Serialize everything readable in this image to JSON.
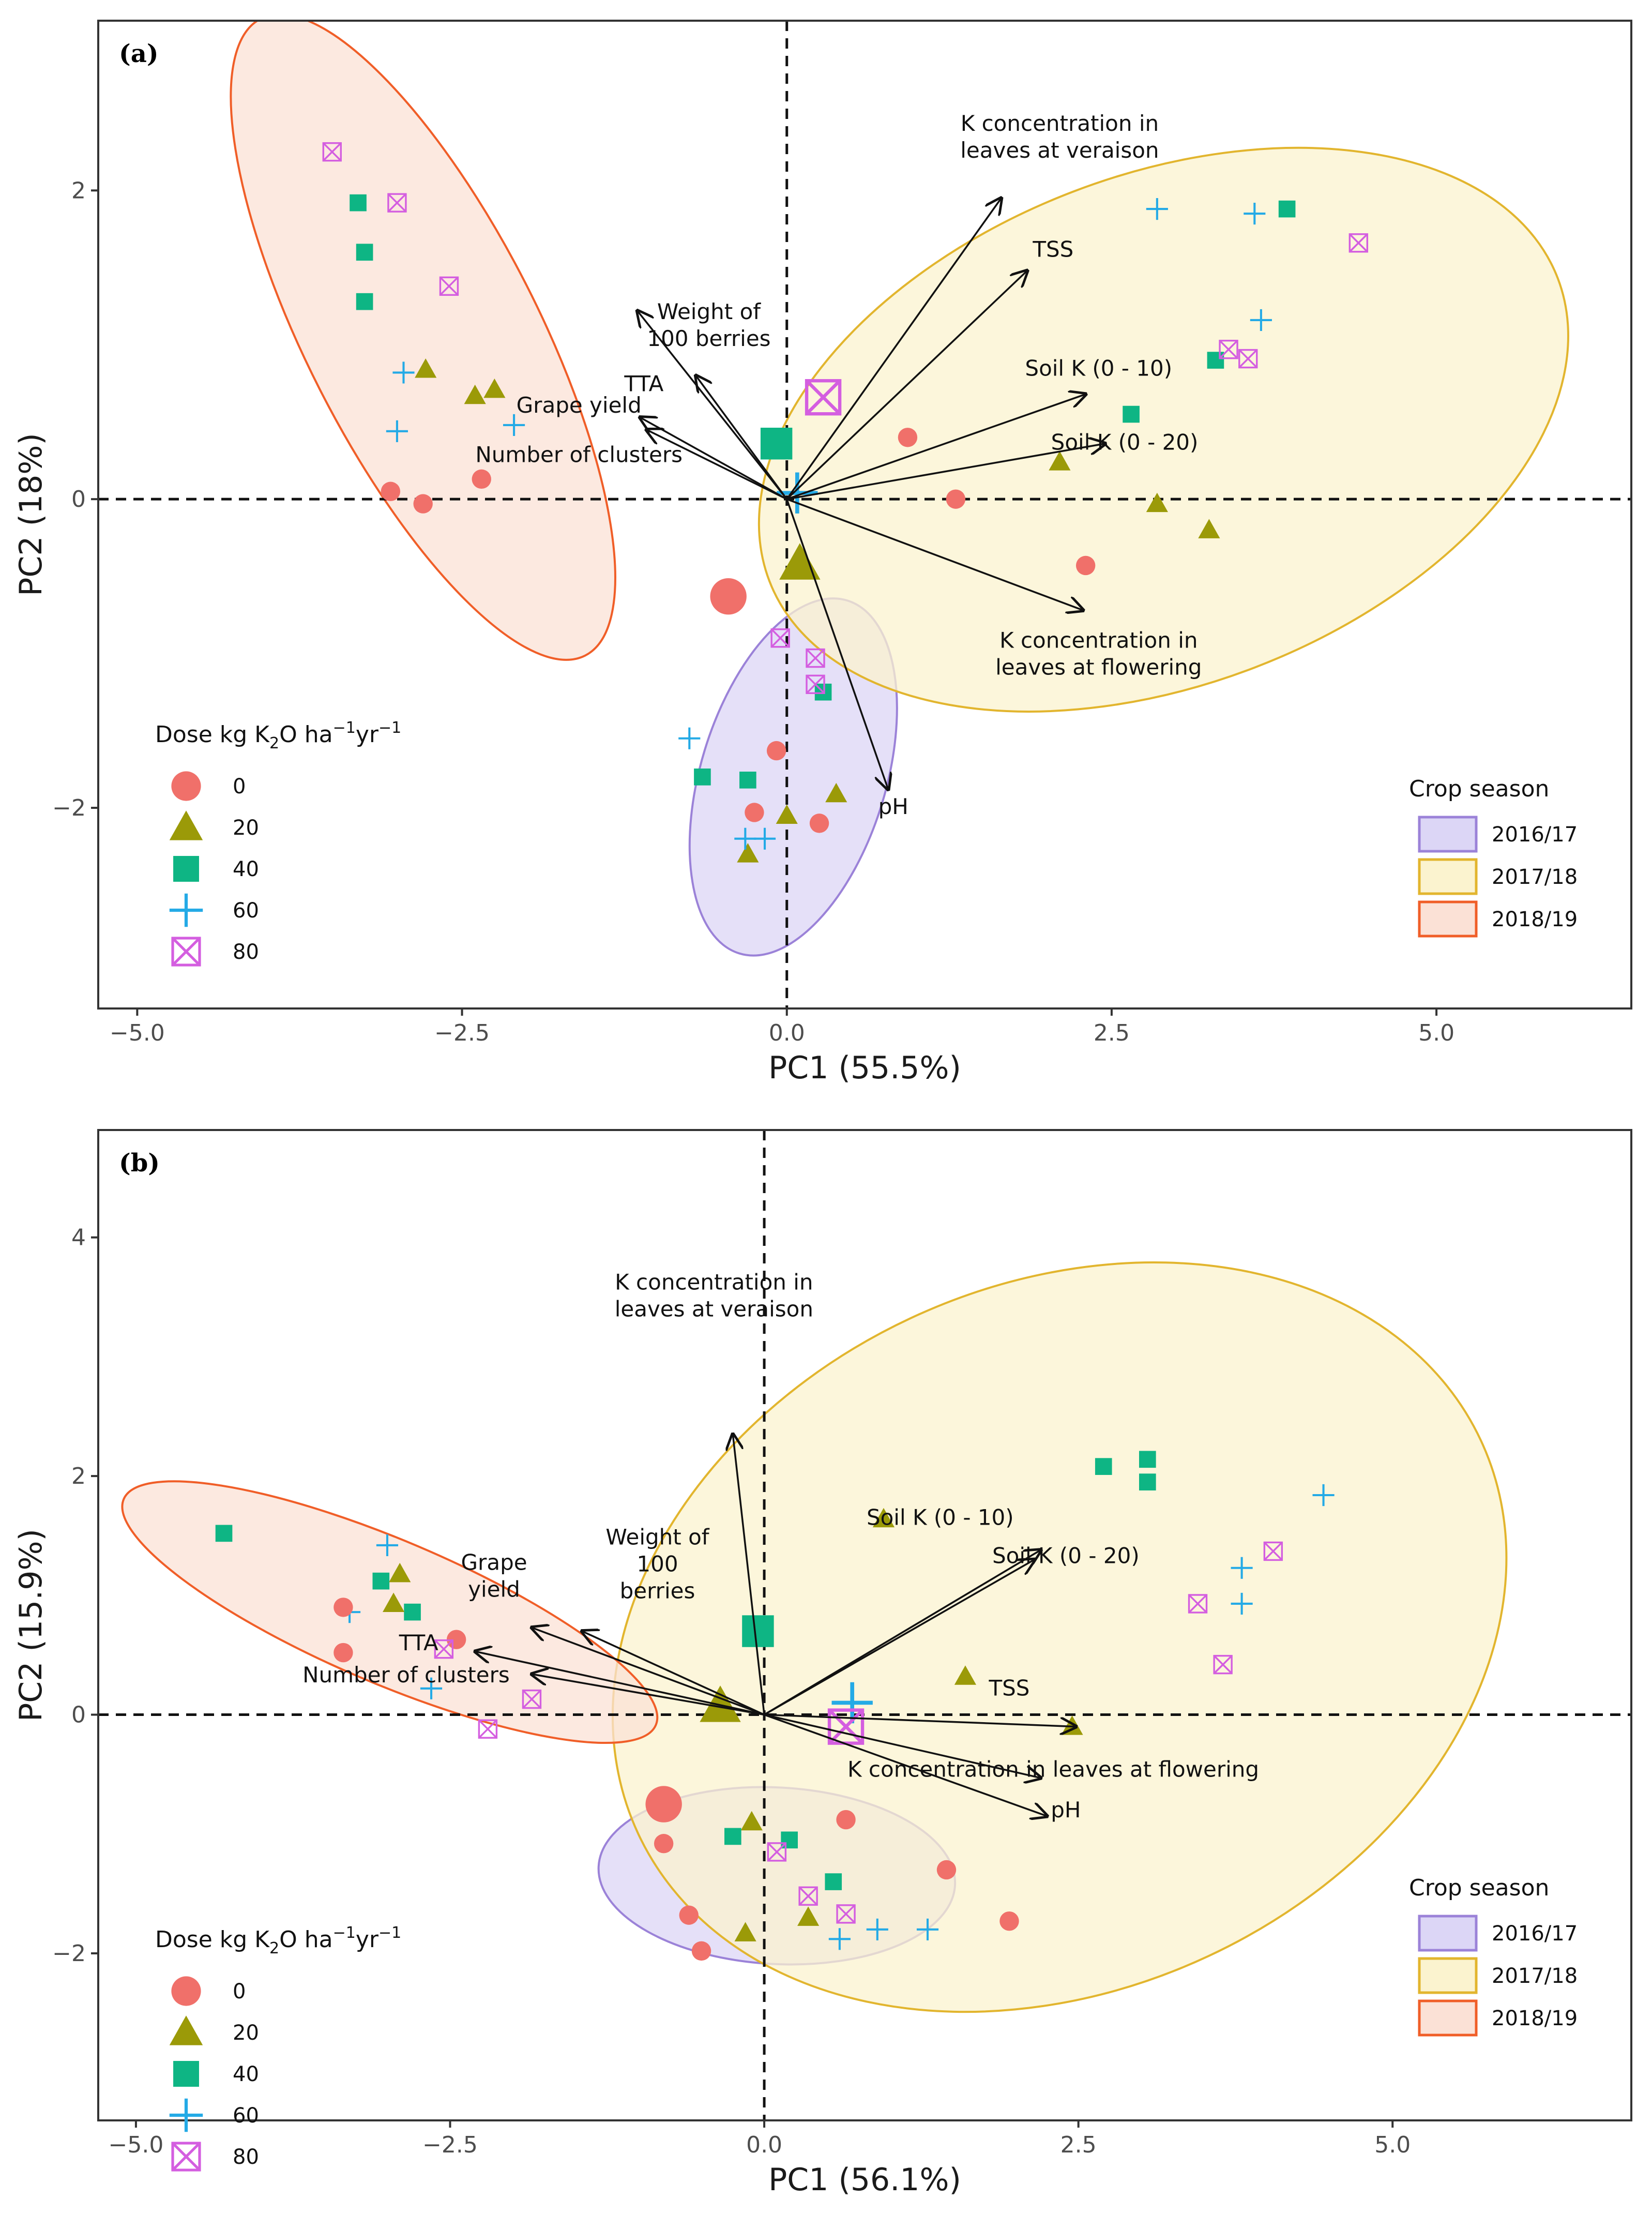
{
  "figure": {
    "colors": {
      "dose_0": "#f0706a",
      "dose_20": "#9b9a08",
      "dose_40": "#0eb584",
      "dose_60": "#24aae6",
      "dose_80": "#d45ee0",
      "season_2016_17_fill": "#dcd6f6",
      "season_2016_17_border": "#9b82d8",
      "season_2017_18_fill": "#fbf3cf",
      "season_2017_18_border": "#e2b52e",
      "season_2018_19_fill": "#fbe1d6",
      "season_2018_19_border": "#f05e28"
    }
  },
  "chart_data": [
    {
      "type": "scatter",
      "panel_label": "(a)",
      "xlabel": "PC1 (55.5%)",
      "ylabel": "PC2 (18%)",
      "xlim": [
        -5.3,
        6.5
      ],
      "ylim": [
        -3.3,
        3.1
      ],
      "xticks": [
        -5.0,
        -2.5,
        0.0,
        2.5,
        5.0
      ],
      "xtick_labels": [
        "−5.0",
        "−2.5",
        "0.0",
        "2.5",
        "5.0"
      ],
      "yticks": [
        -2,
        0,
        2
      ],
      "ytick_labels": [
        "−2",
        "0",
        "2"
      ],
      "dose_legend": {
        "title_prefix": "Dose kg K",
        "title_subscript": "2",
        "title_suffix": "O ha",
        "title_sup1": "−1",
        "title_mid": "yr",
        "title_sup2": "−1",
        "labels": [
          "0",
          "20",
          "40",
          "60",
          "80"
        ]
      },
      "season_legend": {
        "title": "Crop season",
        "labels": [
          "2016/17",
          "2017/18",
          "2018/19"
        ]
      },
      "ellipses": [
        {
          "season": "2016/17",
          "cx": 0.05,
          "cy": -1.8,
          "rx": 1.42,
          "ry": 0.6,
          "angle": 73
        },
        {
          "season": "2017/18",
          "cx": 2.9,
          "cy": 0.45,
          "rx": 3.25,
          "ry": 1.65,
          "angle": 21
        },
        {
          "season": "2018/19",
          "cx": -2.8,
          "cy": 1.05,
          "rx": 2.75,
          "ry": 0.75,
          "angle": -63
        }
      ],
      "loadings": [
        {
          "label": "K concentration in\nleaves at veraison",
          "x": 1.65,
          "y": 1.95,
          "lx": 2.1,
          "ly": 2.3
        },
        {
          "label": "TSS",
          "x": 1.85,
          "y": 1.48,
          "lx": 2.05,
          "ly": 1.57
        },
        {
          "label": "Soil K (0 - 10)",
          "x": 2.3,
          "y": 0.68,
          "lx": 2.4,
          "ly": 0.8
        },
        {
          "label": "Soil K (0 - 20)",
          "x": 2.45,
          "y": 0.36,
          "lx": 2.6,
          "ly": 0.32
        },
        {
          "label": "K concentration in\nleaves at flowering",
          "x": 2.28,
          "y": -0.72,
          "lx": 2.4,
          "ly": -1.05
        },
        {
          "label": "pH",
          "x": 0.78,
          "y": -1.88,
          "lx": 0.82,
          "ly": -2.04
        },
        {
          "label": "Weight of\n100 berries",
          "x": -0.7,
          "y": 0.8,
          "lx": -0.6,
          "ly": 1.08
        },
        {
          "label": "TTA",
          "x": -1.15,
          "y": 1.22,
          "lx": -1.1,
          "ly": 0.7
        },
        {
          "label": "Grape yield",
          "x": -1.13,
          "y": 0.53,
          "lx": -1.6,
          "ly": 0.56
        },
        {
          "label": "Number of clusters",
          "x": -1.08,
          "y": 0.45,
          "lx": -1.6,
          "ly": 0.24
        }
      ],
      "points": [
        {
          "x": -3.5,
          "y": 2.25,
          "dose": "80"
        },
        {
          "x": -3.0,
          "y": 1.92,
          "dose": "80"
        },
        {
          "x": -2.6,
          "y": 1.38,
          "dose": "80"
        },
        {
          "x": -3.3,
          "y": 1.92,
          "dose": "40"
        },
        {
          "x": -3.25,
          "y": 1.6,
          "dose": "40"
        },
        {
          "x": -3.25,
          "y": 1.28,
          "dose": "40"
        },
        {
          "x": -2.95,
          "y": 0.82,
          "dose": "60"
        },
        {
          "x": -3.0,
          "y": 0.44,
          "dose": "60"
        },
        {
          "x": -2.1,
          "y": 0.48,
          "dose": "60"
        },
        {
          "x": -2.78,
          "y": 0.84,
          "dose": "20"
        },
        {
          "x": -2.4,
          "y": 0.67,
          "dose": "20"
        },
        {
          "x": -2.25,
          "y": 0.71,
          "dose": "20"
        },
        {
          "x": -3.05,
          "y": 0.05,
          "dose": "0"
        },
        {
          "x": -2.8,
          "y": -0.03,
          "dose": "0"
        },
        {
          "x": -2.35,
          "y": 0.13,
          "dose": "0"
        },
        {
          "x": 0.93,
          "y": 0.4,
          "dose": "0"
        },
        {
          "x": 1.3,
          "y": 0.0,
          "dose": "0"
        },
        {
          "x": 2.3,
          "y": -0.43,
          "dose": "0"
        },
        {
          "x": 2.1,
          "y": 0.24,
          "dose": "20"
        },
        {
          "x": 2.85,
          "y": -0.03,
          "dose": "20"
        },
        {
          "x": 3.25,
          "y": -0.2,
          "dose": "20"
        },
        {
          "x": 2.65,
          "y": 0.55,
          "dose": "40"
        },
        {
          "x": 3.3,
          "y": 0.9,
          "dose": "40"
        },
        {
          "x": 3.85,
          "y": 1.88,
          "dose": "40"
        },
        {
          "x": 2.85,
          "y": 1.88,
          "dose": "60"
        },
        {
          "x": 3.6,
          "y": 1.85,
          "dose": "60"
        },
        {
          "x": 3.65,
          "y": 1.16,
          "dose": "60"
        },
        {
          "x": 3.4,
          "y": 0.97,
          "dose": "80"
        },
        {
          "x": 3.55,
          "y": 0.91,
          "dose": "80"
        },
        {
          "x": 4.4,
          "y": 1.66,
          "dose": "80"
        },
        {
          "x": -0.08,
          "y": -1.63,
          "dose": "0"
        },
        {
          "x": -0.25,
          "y": -2.03,
          "dose": "0"
        },
        {
          "x": 0.25,
          "y": -2.1,
          "dose": "0"
        },
        {
          "x": -0.3,
          "y": -2.3,
          "dose": "20"
        },
        {
          "x": 0.0,
          "y": -2.05,
          "dose": "20"
        },
        {
          "x": 0.38,
          "y": -1.91,
          "dose": "20"
        },
        {
          "x": -0.65,
          "y": -1.8,
          "dose": "40"
        },
        {
          "x": -0.3,
          "y": -1.82,
          "dose": "40"
        },
        {
          "x": 0.28,
          "y": -1.25,
          "dose": "40"
        },
        {
          "x": -0.75,
          "y": -1.55,
          "dose": "60"
        },
        {
          "x": -0.32,
          "y": -2.2,
          "dose": "60"
        },
        {
          "x": -0.17,
          "y": -2.2,
          "dose": "60"
        },
        {
          "x": -0.05,
          "y": -0.9,
          "dose": "80"
        },
        {
          "x": 0.22,
          "y": -1.03,
          "dose": "80"
        },
        {
          "x": 0.22,
          "y": -1.2,
          "dose": "80"
        }
      ],
      "centroids": [
        {
          "x": -0.45,
          "y": -0.63,
          "dose": "0"
        },
        {
          "x": 0.1,
          "y": -0.42,
          "dose": "20"
        },
        {
          "x": -0.08,
          "y": 0.36,
          "dose": "40"
        },
        {
          "x": 0.08,
          "y": 0.04,
          "dose": "60"
        },
        {
          "x": 0.28,
          "y": 0.66,
          "dose": "80"
        }
      ]
    },
    {
      "type": "scatter",
      "panel_label": "(b)",
      "xlabel": "PC1 (56.1%)",
      "ylabel": "PC2 (15.9%)",
      "xlim": [
        -5.3,
        6.9
      ],
      "ylim": [
        -3.4,
        4.9
      ],
      "xticks": [
        -5.0,
        -2.5,
        0.0,
        2.5,
        5.0
      ],
      "xtick_labels": [
        "−5.0",
        "−2.5",
        "0.0",
        "2.5",
        "5.0"
      ],
      "yticks": [
        -2,
        0,
        2,
        4
      ],
      "ytick_labels": [
        "−2",
        "0",
        "2",
        "4"
      ],
      "dose_legend": {
        "title_prefix": "Dose kg K",
        "title_subscript": "2",
        "title_suffix": "O ha",
        "title_sup1": "−1",
        "title_mid": "yr",
        "title_sup2": "−1",
        "labels": [
          "0",
          "20",
          "40",
          "60",
          "80"
        ]
      },
      "season_legend": {
        "title": "Crop season",
        "labels": [
          "2016/17",
          "2017/18",
          "2018/19"
        ]
      },
      "ellipses": [
        {
          "season": "2016/17",
          "cx": 0.1,
          "cy": -1.35,
          "rx": 1.42,
          "ry": 0.74,
          "angle": -3
        },
        {
          "season": "2017/18",
          "cx": 2.35,
          "cy": 0.65,
          "rx": 3.7,
          "ry": 2.95,
          "angle": 25
        },
        {
          "season": "2018/19",
          "cx": -2.98,
          "cy": 0.86,
          "rx": 2.3,
          "ry": 0.6,
          "angle": -23
        }
      ],
      "loadings": [
        {
          "label": "K concentration in\nleaves at veraison",
          "x": -0.25,
          "y": 2.35,
          "lx": -0.4,
          "ly": 3.45
        },
        {
          "label": "Soil K (0 - 10)",
          "x": 2.2,
          "y": 1.38,
          "lx": 1.4,
          "ly": 1.59
        },
        {
          "label": "Soil K (0 - 20)",
          "x": 2.15,
          "y": 1.3,
          "lx": 2.4,
          "ly": 1.27
        },
        {
          "label": "TSS",
          "x": 2.48,
          "y": -0.1,
          "lx": 1.95,
          "ly": 0.16
        },
        {
          "label": "K concentration in leaves at flowering",
          "x": 2.2,
          "y": -0.53,
          "lx": 2.3,
          "ly": -0.52
        },
        {
          "label": "pH",
          "x": 2.25,
          "y": -0.85,
          "lx": 2.4,
          "ly": -0.86
        },
        {
          "label": "Weight of\n100\nberries",
          "x": -1.45,
          "y": 0.7,
          "lx": -0.85,
          "ly": 1.2
        },
        {
          "label": "Grape\nyield",
          "x": -1.85,
          "y": 0.73,
          "lx": -2.15,
          "ly": 1.1
        },
        {
          "label": "TTA",
          "x": -2.3,
          "y": 0.53,
          "lx": -2.75,
          "ly": 0.54
        },
        {
          "label": "Number of clusters",
          "x": -1.85,
          "y": 0.34,
          "lx": -2.85,
          "ly": 0.27
        }
      ],
      "points": [
        {
          "x": -4.3,
          "y": 1.52,
          "dose": "40"
        },
        {
          "x": -3.05,
          "y": 1.12,
          "dose": "40"
        },
        {
          "x": -2.8,
          "y": 0.86,
          "dose": "40"
        },
        {
          "x": -3.0,
          "y": 1.42,
          "dose": "60"
        },
        {
          "x": -3.3,
          "y": 0.86,
          "dose": "60"
        },
        {
          "x": -2.65,
          "y": 0.22,
          "dose": "60"
        },
        {
          "x": -2.9,
          "y": 1.18,
          "dose": "20"
        },
        {
          "x": -2.95,
          "y": 0.93,
          "dose": "20"
        },
        {
          "x": -3.35,
          "y": 0.9,
          "dose": "0"
        },
        {
          "x": -3.35,
          "y": 0.52,
          "dose": "0"
        },
        {
          "x": -2.45,
          "y": 0.63,
          "dose": "0"
        },
        {
          "x": -2.55,
          "y": 0.55,
          "dose": "80"
        },
        {
          "x": -1.85,
          "y": 0.13,
          "dose": "80"
        },
        {
          "x": -2.2,
          "y": -0.12,
          "dose": "80"
        },
        {
          "x": 0.95,
          "y": 1.64,
          "dose": "20"
        },
        {
          "x": 1.6,
          "y": 0.32,
          "dose": "20"
        },
        {
          "x": 2.45,
          "y": -0.1,
          "dose": "20"
        },
        {
          "x": 2.7,
          "y": 2.08,
          "dose": "40"
        },
        {
          "x": 3.05,
          "y": 2.14,
          "dose": "40"
        },
        {
          "x": 3.05,
          "y": 1.95,
          "dose": "40"
        },
        {
          "x": 4.45,
          "y": 1.84,
          "dose": "60"
        },
        {
          "x": 3.8,
          "y": 1.23,
          "dose": "60"
        },
        {
          "x": 3.8,
          "y": 0.93,
          "dose": "60"
        },
        {
          "x": 4.05,
          "y": 1.37,
          "dose": "80"
        },
        {
          "x": 3.45,
          "y": 0.93,
          "dose": "80"
        },
        {
          "x": 3.65,
          "y": 0.42,
          "dose": "80"
        },
        {
          "x": -0.8,
          "y": -1.08,
          "dose": "0"
        },
        {
          "x": -0.6,
          "y": -1.68,
          "dose": "0"
        },
        {
          "x": -0.5,
          "y": -1.98,
          "dose": "0"
        },
        {
          "x": 0.65,
          "y": -0.88,
          "dose": "0"
        },
        {
          "x": 1.45,
          "y": -1.3,
          "dose": "0"
        },
        {
          "x": 1.95,
          "y": -1.73,
          "dose": "0"
        },
        {
          "x": -0.1,
          "y": -0.9,
          "dose": "20"
        },
        {
          "x": -0.15,
          "y": -1.83,
          "dose": "20"
        },
        {
          "x": 0.35,
          "y": -1.7,
          "dose": "20"
        },
        {
          "x": -0.25,
          "y": -1.02,
          "dose": "40"
        },
        {
          "x": 0.2,
          "y": -1.05,
          "dose": "40"
        },
        {
          "x": 0.55,
          "y": -1.4,
          "dose": "40"
        },
        {
          "x": 0.6,
          "y": -1.88,
          "dose": "60"
        },
        {
          "x": 0.9,
          "y": -1.8,
          "dose": "60"
        },
        {
          "x": 1.3,
          "y": -1.8,
          "dose": "60"
        },
        {
          "x": 0.1,
          "y": -1.15,
          "dose": "80"
        },
        {
          "x": 0.35,
          "y": -1.52,
          "dose": "80"
        },
        {
          "x": 0.65,
          "y": -1.67,
          "dose": "80"
        }
      ],
      "centroids": [
        {
          "x": -0.8,
          "y": -0.75,
          "dose": "0"
        },
        {
          "x": -0.35,
          "y": 0.07,
          "dose": "20"
        },
        {
          "x": -0.05,
          "y": 0.7,
          "dose": "40"
        },
        {
          "x": 0.7,
          "y": 0.1,
          "dose": "60"
        },
        {
          "x": 0.65,
          "y": -0.1,
          "dose": "80"
        }
      ]
    }
  ]
}
